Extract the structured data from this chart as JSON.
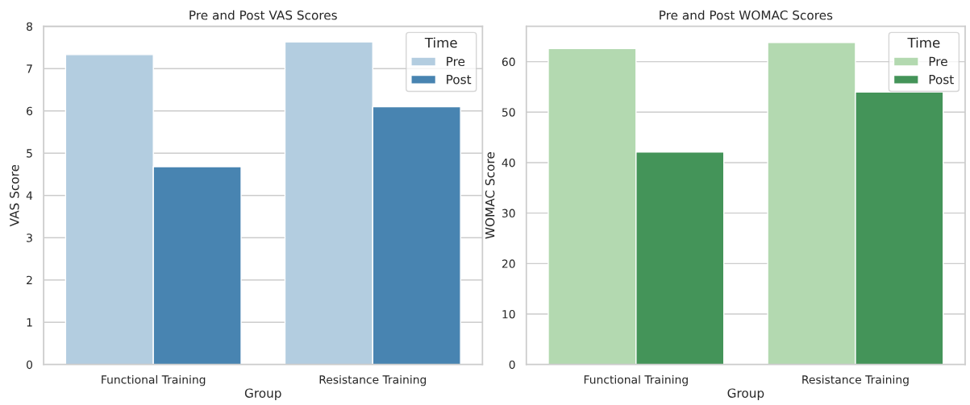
{
  "chart_data": [
    {
      "type": "bar",
      "title": "Pre and Post VAS Scores",
      "xlabel": "Group",
      "ylabel": "VAS Score",
      "legend_title": "Time",
      "categories": [
        "Functional Training",
        "Resistance Training"
      ],
      "series": [
        {
          "name": "Pre",
          "color": "#b3cde0",
          "values": [
            7.33,
            7.63
          ]
        },
        {
          "name": "Post",
          "color": "#4884b1",
          "values": [
            4.68,
            6.1
          ]
        }
      ],
      "ylim": [
        0,
        8
      ],
      "yticks": [
        0,
        1,
        2,
        3,
        4,
        5,
        6,
        7,
        8
      ],
      "grid": "y",
      "legend": "top right"
    },
    {
      "type": "bar",
      "title": "Pre and Post WOMAC Scores",
      "xlabel": "Group",
      "ylabel": "WOMAC Score",
      "legend_title": "Time",
      "categories": [
        "Functional Training",
        "Resistance Training"
      ],
      "series": [
        {
          "name": "Pre",
          "color": "#b3d9b0",
          "values": [
            62.6,
            63.8
          ]
        },
        {
          "name": "Post",
          "color": "#449459",
          "values": [
            42.1,
            54.0
          ]
        }
      ],
      "ylim": [
        0,
        67
      ],
      "yticks": [
        0,
        10,
        20,
        30,
        40,
        50,
        60
      ],
      "grid": "y",
      "legend": "top right"
    }
  ]
}
